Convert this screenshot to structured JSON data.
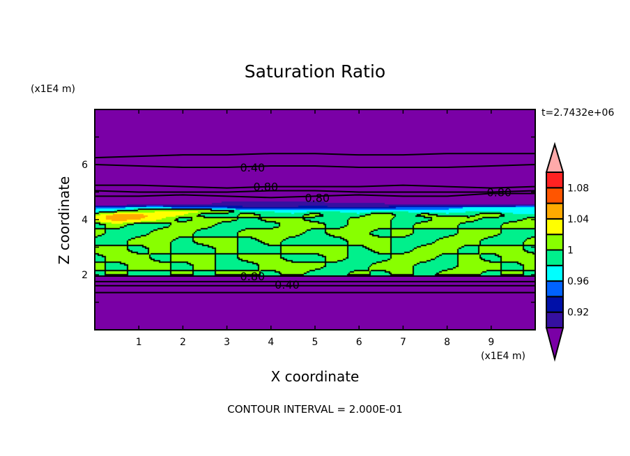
{
  "chart_data": {
    "type": "heatmap",
    "title": "Saturation Ratio",
    "xlabel": "X coordinate",
    "ylabel": "Z coordinate",
    "x_unit": "(x1E4 m)",
    "y_unit": "(x1E4 m)",
    "time_label": "t=2.7432e+06",
    "footer": "CONTOUR INTERVAL = 2.000E-01",
    "xlim": [
      0,
      10
    ],
    "ylim": [
      0,
      8
    ],
    "x_ticks": [
      "1",
      "2",
      "3",
      "4",
      "5",
      "6",
      "7",
      "8",
      "9"
    ],
    "y_ticks": [
      "2",
      "4",
      "6"
    ],
    "colorbar": {
      "levels": [
        0.9,
        0.92,
        0.94,
        0.96,
        0.98,
        1.0,
        1.02,
        1.04,
        1.06,
        1.08,
        1.1
      ],
      "colors": [
        "#7a00a6",
        "#3510a0",
        "#0010a8",
        "#0062ff",
        "#00ffff",
        "#00f08c",
        "#88ff00",
        "#ffff00",
        "#ffaa00",
        "#ff5500",
        "#ff2222",
        "#ffaaaa"
      ],
      "tick_labels": [
        {
          "value": 0.92,
          "label": "0.92"
        },
        {
          "value": 0.96,
          "label": "0.96"
        },
        {
          "value": 1.0,
          "label": "1"
        },
        {
          "value": 1.04,
          "label": "1.04"
        },
        {
          "value": 1.08,
          "label": "1.08"
        }
      ],
      "extend": "both"
    },
    "grid_x": [
      0,
      0.5,
      1,
      1.5,
      2,
      2.5,
      3,
      3.5,
      4,
      4.5,
      5,
      5.5,
      6,
      6.5,
      7,
      7.5,
      8,
      8.5,
      9,
      9.5,
      10
    ],
    "grid_z": [
      0,
      1.5,
      1.9,
      2.0,
      2.3,
      2.6,
      2.9,
      3.2,
      3.5,
      3.8,
      4.0,
      4.15,
      4.3,
      4.45,
      4.6,
      5.2,
      6.2,
      8
    ],
    "values": [
      [
        0.3,
        0.3,
        0.3,
        0.3,
        0.3,
        0.3,
        0.3,
        0.3,
        0.3,
        0.3,
        0.3,
        0.3,
        0.3,
        0.3,
        0.3,
        0.3,
        0.3,
        0.3,
        0.3,
        0.3,
        0.3
      ],
      [
        0.5,
        0.5,
        0.5,
        0.5,
        0.5,
        0.5,
        0.5,
        0.5,
        0.5,
        0.5,
        0.5,
        0.5,
        0.5,
        0.5,
        0.5,
        0.5,
        0.5,
        0.5,
        0.5,
        0.5,
        0.5
      ],
      [
        0.7,
        0.7,
        0.7,
        0.7,
        0.7,
        0.7,
        0.7,
        0.7,
        0.7,
        0.7,
        0.7,
        0.7,
        0.7,
        0.7,
        0.7,
        0.7,
        0.7,
        0.7,
        0.7,
        0.7,
        0.7
      ],
      [
        0.99,
        1.01,
        0.99,
        0.99,
        1.01,
        0.99,
        1.01,
        1.01,
        0.99,
        1.01,
        0.99,
        0.99,
        1.01,
        0.99,
        1.01,
        0.99,
        1.01,
        1.01,
        0.99,
        1.01,
        0.99
      ],
      [
        1.01,
        0.99,
        1.01,
        1.01,
        0.99,
        1.01,
        0.99,
        0.99,
        1.01,
        1.01,
        1.01,
        0.99,
        0.99,
        1.01,
        1.01,
        0.99,
        0.99,
        1.01,
        1.01,
        0.99,
        1.01
      ],
      [
        0.99,
        1.01,
        1.01,
        0.99,
        1.01,
        1.01,
        0.99,
        1.01,
        1.01,
        0.99,
        0.99,
        1.01,
        0.99,
        0.99,
        1.01,
        1.01,
        0.99,
        1.01,
        0.99,
        1.01,
        1.01
      ],
      [
        1.01,
        1.01,
        0.99,
        1.01,
        0.99,
        0.99,
        1.01,
        0.99,
        0.99,
        1.01,
        1.01,
        1.01,
        0.99,
        1.01,
        0.99,
        1.01,
        1.01,
        0.99,
        1.01,
        1.01,
        0.99
      ],
      [
        0.99,
        0.99,
        1.01,
        1.01,
        0.99,
        1.01,
        1.01,
        0.99,
        1.01,
        0.99,
        0.99,
        0.99,
        1.01,
        1.01,
        0.99,
        0.99,
        1.01,
        1.01,
        0.99,
        0.99,
        1.01
      ],
      [
        1.01,
        0.99,
        0.99,
        1.01,
        1.01,
        0.99,
        0.99,
        1.01,
        1.01,
        1.01,
        0.99,
        1.01,
        1.01,
        0.99,
        1.01,
        0.99,
        0.99,
        1.01,
        1.01,
        0.99,
        0.99
      ],
      [
        0.99,
        1.01,
        0.99,
        0.99,
        1.01,
        1.01,
        0.99,
        0.99,
        0.99,
        1.01,
        1.01,
        0.99,
        1.01,
        1.01,
        0.99,
        1.01,
        1.01,
        0.99,
        0.99,
        1.01,
        1.01
      ],
      [
        1.03,
        1.05,
        1.04,
        1.02,
        0.99,
        1.01,
        1.01,
        0.99,
        1.01,
        1.01,
        0.99,
        0.99,
        1.01,
        1.01,
        0.99,
        0.99,
        1.02,
        1.01,
        0.99,
        0.99,
        1.01
      ],
      [
        1.02,
        1.06,
        1.05,
        1.03,
        1.02,
        0.99,
        0.99,
        1.01,
        0.99,
        0.99,
        1.01,
        0.99,
        0.99,
        1.02,
        0.99,
        1.01,
        0.99,
        0.99,
        1.02,
        0.99,
        0.99
      ],
      [
        0.97,
        0.99,
        1.01,
        1.02,
        1.03,
        1.02,
        1.01,
        0.98,
        0.98,
        0.97,
        0.98,
        0.98,
        0.97,
        0.98,
        0.98,
        0.97,
        0.97,
        0.98,
        0.98,
        0.97,
        0.97
      ],
      [
        0.95,
        0.95,
        0.96,
        0.96,
        0.94,
        0.93,
        0.93,
        0.92,
        0.92,
        0.92,
        0.93,
        0.92,
        0.92,
        0.92,
        0.94,
        0.95,
        0.95,
        0.96,
        0.96,
        0.96,
        0.97
      ],
      [
        0.85,
        0.85,
        0.86,
        0.87,
        0.88,
        0.89,
        0.91,
        0.91,
        0.91,
        0.91,
        0.91,
        0.9,
        0.9,
        0.9,
        0.88,
        0.87,
        0.86,
        0.86,
        0.86,
        0.86,
        0.86
      ],
      [
        0.8,
        0.8,
        0.8,
        0.8,
        0.8,
        0.8,
        0.8,
        0.8,
        0.8,
        0.8,
        0.8,
        0.8,
        0.8,
        0.8,
        0.8,
        0.8,
        0.8,
        0.8,
        0.8,
        0.8,
        0.8
      ],
      [
        0.4,
        0.4,
        0.4,
        0.4,
        0.4,
        0.4,
        0.4,
        0.4,
        0.4,
        0.4,
        0.4,
        0.4,
        0.4,
        0.4,
        0.4,
        0.4,
        0.4,
        0.4,
        0.4,
        0.4,
        0.4
      ],
      [
        0.2,
        0.2,
        0.2,
        0.2,
        0.2,
        0.2,
        0.2,
        0.2,
        0.2,
        0.2,
        0.2,
        0.2,
        0.2,
        0.2,
        0.2,
        0.2,
        0.2,
        0.2,
        0.2,
        0.2,
        0.2
      ]
    ],
    "contour_lines": [
      {
        "label": "0.40",
        "label_x": 3.3,
        "label_z": 5.9,
        "z": [
          6.0,
          5.95,
          5.9,
          5.9,
          5.95,
          5.95,
          5.9,
          5.9,
          5.9,
          5.95,
          6.0
        ]
      },
      {
        "z": [
          6.25,
          6.3,
          6.35,
          6.35,
          6.4,
          6.4,
          6.35,
          6.35,
          6.4,
          6.4,
          6.4
        ]
      },
      {
        "label": "0.80",
        "label_x": 3.6,
        "label_z": 5.2,
        "z": [
          5.25,
          5.25,
          5.2,
          5.15,
          5.2,
          5.2,
          5.2,
          5.25,
          5.2,
          5.15,
          5.2
        ]
      },
      {
        "label": "0.80",
        "label_x": 3.2,
        "label_z": 4.8,
        "z": [
          4.85,
          4.85,
          4.9,
          4.85,
          4.8,
          4.85,
          4.9,
          4.85,
          4.85,
          4.95,
          4.95
        ]
      },
      {
        "label": "0.80",
        "label_x": 8.9,
        "label_z": 5.0,
        "z": [
          5.05,
          5.0,
          5.0,
          5.0,
          5.05,
          5.05,
          5.0,
          5.0,
          5.0,
          5.0,
          5.05
        ]
      },
      {
        "label": "0.80",
        "label_x": 3.3,
        "label_z": 1.95,
        "z": [
          1.95,
          1.95,
          1.95,
          1.95,
          1.95,
          1.95,
          1.95,
          1.95,
          1.95,
          1.95,
          1.95
        ]
      },
      {
        "z": [
          1.75,
          1.75,
          1.75,
          1.75,
          1.75,
          1.75,
          1.75,
          1.75,
          1.75,
          1.75,
          1.75
        ]
      },
      {
        "label": "0.40",
        "label_x": 3.3,
        "label_z": 1.65,
        "z": [
          1.6,
          1.6,
          1.6,
          1.6,
          1.6,
          1.6,
          1.6,
          1.6,
          1.6,
          1.6,
          1.6
        ]
      },
      {
        "z": [
          1.35,
          1.35,
          1.35,
          1.35,
          1.35,
          1.35,
          1.35,
          1.35,
          1.35,
          1.35,
          1.35
        ]
      }
    ]
  }
}
